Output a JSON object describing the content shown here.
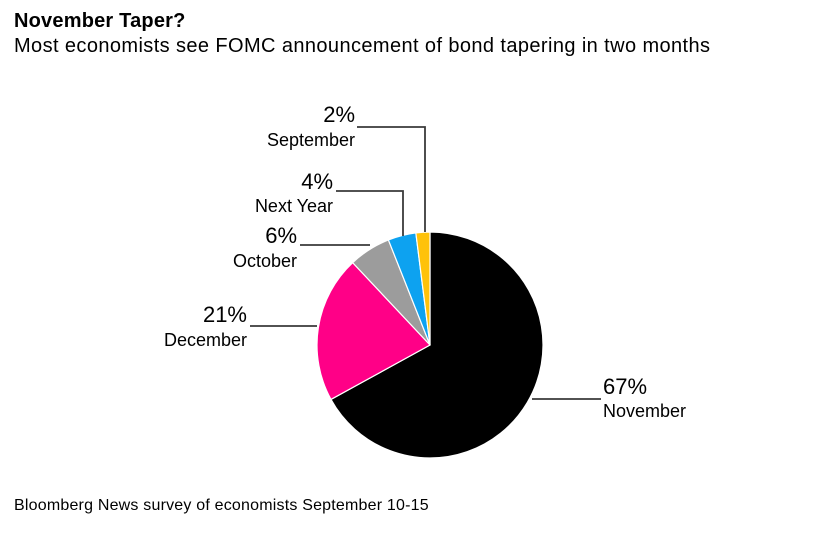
{
  "header": {
    "title": "November Taper?",
    "subtitle": "Most economists see FOMC announcement of bond tapering in two months"
  },
  "footer": {
    "source": "Bloomberg News survey of economists September 10-15"
  },
  "colors": {
    "background": "#ffffff",
    "text": "#000000",
    "leader_line": "#3a3a3a",
    "slice_stroke": "#ffffff"
  },
  "chart_data": {
    "type": "pie",
    "title": "November Taper?",
    "subtitle": "Most economists see FOMC announcement of bond tapering in two months",
    "source": "Bloomberg News survey of economists September 10-15",
    "direction": "clockwise",
    "start_angle_deg_from_top": 0,
    "legend_position": "leader-line labels around pie",
    "slices": [
      {
        "label": "November",
        "value": 67,
        "percent_label": "67%",
        "color": "#000000"
      },
      {
        "label": "December",
        "value": 21,
        "percent_label": "21%",
        "color": "#FF0087"
      },
      {
        "label": "October",
        "value": 6,
        "percent_label": "6%",
        "color": "#9C9C9C"
      },
      {
        "label": "Next Year",
        "value": 4,
        "percent_label": "4%",
        "color": "#0DA2F0"
      },
      {
        "label": "September",
        "value": 2,
        "percent_label": "2%",
        "color": "#FFC20A"
      }
    ]
  }
}
